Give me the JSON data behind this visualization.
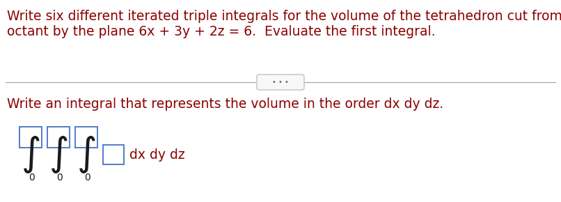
{
  "bg_color": "#ffffff",
  "text_color": "#8B0000",
  "line1": "Write six different iterated triple integrals for the volume of the tetrahedron cut from the first",
  "line2": "octant by the plane 6x + 3y + 2z = 6.  Evaluate the first integral.",
  "subtitle": "Write an integral that represents the volume in the order dx dy dz.",
  "dots_text": "• • •",
  "lower_limits": [
    "0",
    "0",
    "0"
  ],
  "suffix_text": "dx dy dz",
  "box_color": "#4472C4",
  "integral_color": "#1a1a1a",
  "divider_color": "#aaaaaa",
  "font_size_main": 13.5,
  "font_size_integral": 28,
  "font_size_lower": 10,
  "font_size_suffix": 13.5
}
